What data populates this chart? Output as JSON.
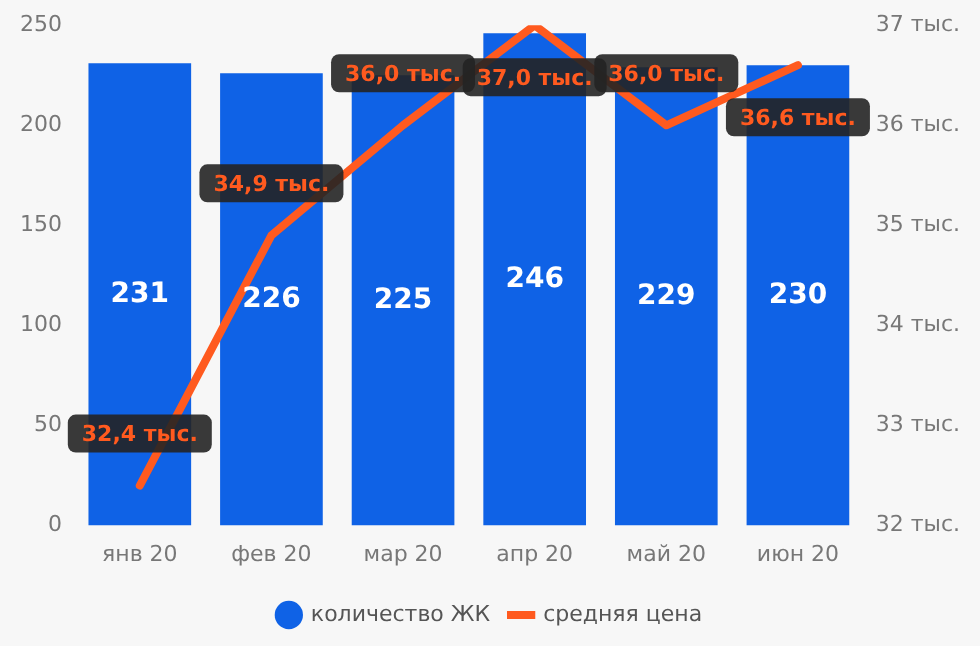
{
  "chart_data": {
    "type": "bar",
    "categories": [
      "янв 20",
      "фев 20",
      "мар 20",
      "апр 20",
      "май 20",
      "июн 20"
    ],
    "series": [
      {
        "name": "количество ЖК",
        "color": "#0f62e6",
        "values": [
          231,
          226,
          225,
          246,
          229,
          230
        ],
        "value_labels": [
          "231",
          "226",
          "225",
          "246",
          "229",
          "230"
        ]
      },
      {
        "name": "средняя цена",
        "type": "line",
        "axis": "y2",
        "color": "#ff5a1f",
        "values": [
          32.4,
          34.9,
          36.0,
          37.0,
          36.0,
          36.6
        ],
        "value_labels": [
          "32,4 тыс.",
          "34,9 тыс.",
          "36,0 тыс.",
          "37,0 тыс.",
          "36,0 тыс.",
          "36,6 тыс."
        ]
      }
    ],
    "ylim": [
      0,
      250
    ],
    "yticks": [
      0,
      50,
      100,
      150,
      200,
      250
    ],
    "y2lim": [
      32,
      37
    ],
    "y2ticks": [
      {
        "value": 32,
        "label": "32 тыс."
      },
      {
        "value": 33,
        "label": "33 тыс."
      },
      {
        "value": 34,
        "label": "34 тыс."
      },
      {
        "value": 35,
        "label": "35 тыс."
      },
      {
        "value": 36,
        "label": "36 тыс."
      },
      {
        "value": 37,
        "label": "37 тыс."
      }
    ],
    "grid": false,
    "legend": "bottom",
    "marker": "none"
  }
}
